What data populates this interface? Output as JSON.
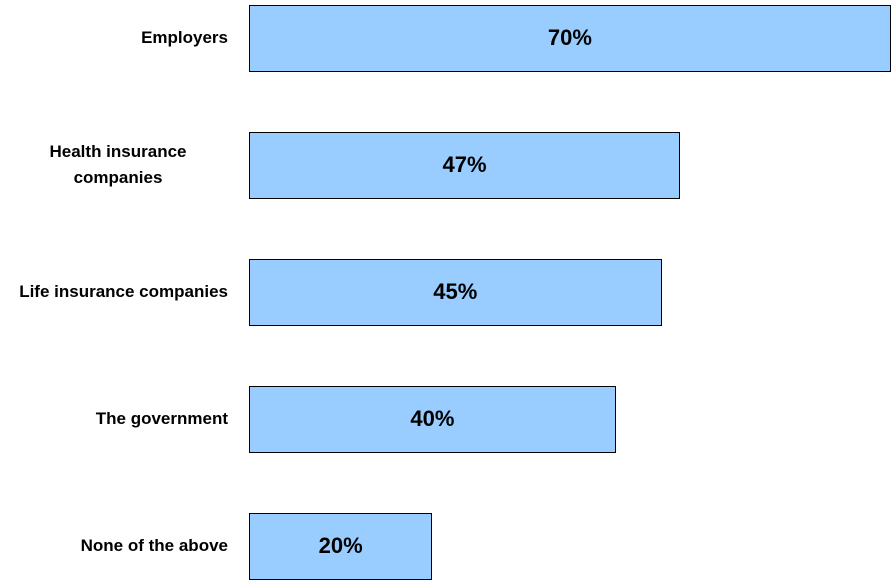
{
  "chart_data": {
    "type": "bar",
    "orientation": "horizontal",
    "categories": [
      "Employers",
      "Health insurance companies",
      "Life insurance companies",
      "The government",
      "None of the above"
    ],
    "values": [
      70,
      47,
      45,
      40,
      20
    ],
    "value_labels": [
      "70%",
      "47%",
      "45%",
      "40%",
      "20%"
    ],
    "color": "#99ccff"
  }
}
